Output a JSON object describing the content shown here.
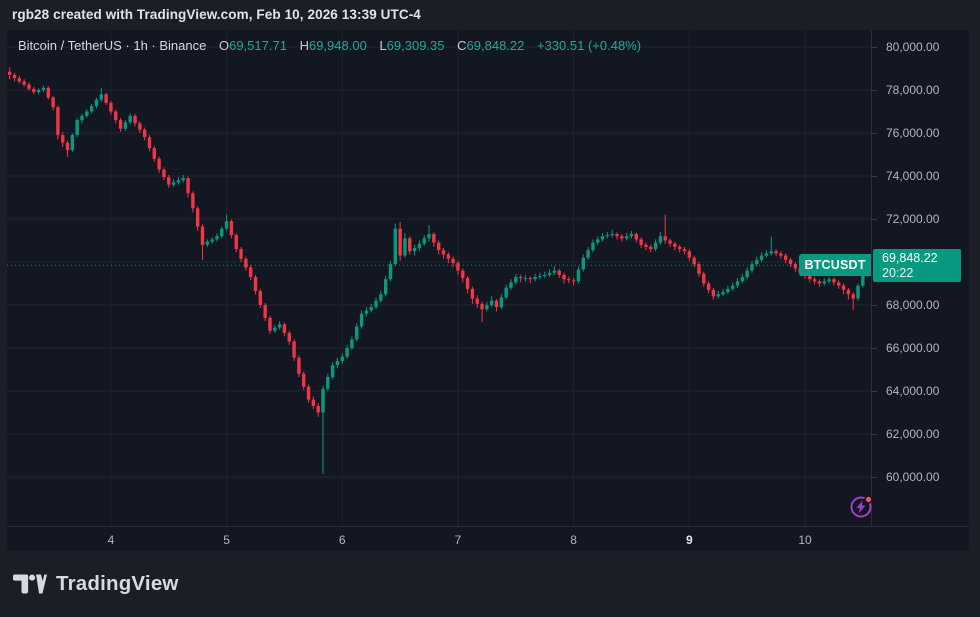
{
  "attribution": {
    "text": "rgb28 created with TradingView.com, Feb 10, 2026 13:39 UTC-4"
  },
  "legend": {
    "symbol_title": "Bitcoin / TetherUS · 1h · Binance",
    "ohlc": {
      "o_label": "O",
      "o_value": "69,517.71",
      "h_label": "H",
      "h_value": "69,948.00",
      "l_label": "L",
      "l_value": "69,309.35",
      "c_label": "C",
      "c_value": "69,848.22",
      "change": "+330.51 (+0.48%)"
    }
  },
  "price_badge": {
    "symbol_label": "BTCUSDT",
    "price": "69,848.22",
    "countdown": "20:22"
  },
  "price_scale": {
    "labels": [
      {
        "text": "80,000.00",
        "value": 80000
      },
      {
        "text": "78,000.00",
        "value": 78000
      },
      {
        "text": "76,000.00",
        "value": 76000
      },
      {
        "text": "74,000.00",
        "value": 74000
      },
      {
        "text": "72,000.00",
        "value": 72000
      },
      {
        "text": "68,000.00",
        "value": 68000
      },
      {
        "text": "66,000.00",
        "value": 66000
      },
      {
        "text": "64,000.00",
        "value": 64000
      },
      {
        "text": "62,000.00",
        "value": 62000
      },
      {
        "text": "60,000.00",
        "value": 60000
      }
    ]
  },
  "footer": {
    "logo_text": "TradingView"
  },
  "icons": {
    "flash-icon": "lightning bolt in circle with red dot",
    "tradingview-logo-icon": "TV monogram"
  },
  "colors": {
    "up": "#089981",
    "down": "#f23645",
    "page_bg": "#1b1e26",
    "widget_bg": "#131722",
    "grid": "#1f2430",
    "separator": "#2a2e39",
    "axis_text": "#b2b5be",
    "flash_purple": "#a13fc9",
    "flash_dot_red": "#f7525f"
  },
  "chart_data": {
    "type": "candlestick",
    "symbol": "BTCUSDT",
    "exchange": "Binance",
    "timeframe": "1h",
    "title": "Bitcoin / TetherUS · 1h · Binance",
    "first_bar_time": "2026-02-03 03:00",
    "last_bar_time": "2026-02-10 13:00",
    "last_price": 69848.22,
    "price_axis": {
      "max": 80000,
      "min": 60000,
      "grid_step": 2000,
      "gridline_prices": [
        60000,
        62000,
        64000,
        66000,
        68000,
        70000,
        72000,
        74000,
        76000,
        78000,
        80000
      ]
    },
    "day_ticks": [
      {
        "text": "4",
        "index": 21,
        "bold": false
      },
      {
        "text": "5",
        "index": 45,
        "bold": false
      },
      {
        "text": "6",
        "index": 69,
        "bold": false
      },
      {
        "text": "7",
        "index": 93,
        "bold": false
      },
      {
        "text": "8",
        "index": 117,
        "bold": false
      },
      {
        "text": "9",
        "index": 141,
        "bold": true
      },
      {
        "text": "10",
        "index": 165,
        "bold": false
      }
    ],
    "candles": [
      [
        78850,
        79050,
        78500,
        78700
      ],
      [
        78700,
        78800,
        78400,
        78550
      ],
      [
        78550,
        78650,
        78300,
        78400
      ],
      [
        78400,
        78500,
        78150,
        78250
      ],
      [
        78250,
        78350,
        77950,
        78050
      ],
      [
        78050,
        78150,
        77800,
        77900
      ],
      [
        77900,
        78080,
        77800,
        78000
      ],
      [
        78000,
        78200,
        77900,
        78100
      ],
      [
        78100,
        78180,
        77550,
        77650
      ],
      [
        77650,
        77720,
        77050,
        77200
      ],
      [
        77200,
        77280,
        75700,
        75900
      ],
      [
        75900,
        76050,
        75350,
        75550
      ],
      [
        75550,
        75650,
        74880,
        75200
      ],
      [
        75200,
        75980,
        75100,
        75900
      ],
      [
        75900,
        76700,
        75820,
        76600
      ],
      [
        76600,
        76900,
        76450,
        76800
      ],
      [
        76800,
        77100,
        76700,
        77000
      ],
      [
        77000,
        77350,
        76900,
        77250
      ],
      [
        77250,
        77650,
        77150,
        77550
      ],
      [
        77550,
        78100,
        77450,
        77800
      ],
      [
        77800,
        77880,
        77300,
        77400
      ],
      [
        77400,
        77500,
        76850,
        77000
      ],
      [
        77000,
        77080,
        76450,
        76600
      ],
      [
        76600,
        76700,
        76050,
        76200
      ],
      [
        76200,
        76600,
        76100,
        76500
      ],
      [
        76500,
        76900,
        76400,
        76800
      ],
      [
        76800,
        76880,
        76300,
        76450
      ],
      [
        76450,
        76550,
        76000,
        76150
      ],
      [
        76150,
        76250,
        75650,
        75800
      ],
      [
        75800,
        75900,
        75150,
        75300
      ],
      [
        75300,
        75400,
        74650,
        74800
      ],
      [
        74800,
        74900,
        74150,
        74300
      ],
      [
        74300,
        74400,
        73800,
        73950
      ],
      [
        73950,
        74050,
        73450,
        73600
      ],
      [
        73600,
        73850,
        73500,
        73700
      ],
      [
        73700,
        73950,
        73600,
        73800
      ],
      [
        73800,
        74050,
        73700,
        73900
      ],
      [
        73900,
        73980,
        73000,
        73200
      ],
      [
        73200,
        73280,
        72300,
        72500
      ],
      [
        72500,
        72600,
        71450,
        71650
      ],
      [
        71650,
        71750,
        70100,
        70800
      ],
      [
        70800,
        71050,
        70700,
        70950
      ],
      [
        70950,
        71150,
        70850,
        71050
      ],
      [
        71050,
        71350,
        70950,
        71200
      ],
      [
        71200,
        71650,
        71100,
        71550
      ],
      [
        71550,
        72200,
        71450,
        71900
      ],
      [
        71900,
        71980,
        71100,
        71250
      ],
      [
        71250,
        71350,
        70450,
        70600
      ],
      [
        70600,
        70700,
        70000,
        70150
      ],
      [
        70150,
        70250,
        69600,
        69750
      ],
      [
        69750,
        69850,
        69150,
        69300
      ],
      [
        69300,
        69400,
        68500,
        68650
      ],
      [
        68650,
        68750,
        67850,
        68000
      ],
      [
        68000,
        68100,
        67250,
        67400
      ],
      [
        67400,
        67500,
        66650,
        66800
      ],
      [
        66800,
        67050,
        66700,
        66950
      ],
      [
        66950,
        67250,
        66850,
        67100
      ],
      [
        67100,
        67180,
        66550,
        66700
      ],
      [
        66700,
        66800,
        66150,
        66300
      ],
      [
        66300,
        66400,
        65400,
        65550
      ],
      [
        65550,
        65650,
        64650,
        64800
      ],
      [
        64800,
        64900,
        64050,
        64200
      ],
      [
        64200,
        64300,
        63450,
        63600
      ],
      [
        63600,
        63750,
        63150,
        63300
      ],
      [
        63300,
        63450,
        62800,
        63000
      ],
      [
        63000,
        64250,
        60150,
        64100
      ],
      [
        64100,
        64800,
        64000,
        64650
      ],
      [
        64650,
        65350,
        64550,
        65200
      ],
      [
        65200,
        65550,
        65050,
        65400
      ],
      [
        65400,
        65750,
        65250,
        65600
      ],
      [
        65600,
        66150,
        65500,
        66000
      ],
      [
        66000,
        66550,
        65900,
        66400
      ],
      [
        66400,
        67150,
        66300,
        67000
      ],
      [
        67000,
        67750,
        66900,
        67600
      ],
      [
        67600,
        67900,
        67450,
        67750
      ],
      [
        67750,
        68050,
        67650,
        67900
      ],
      [
        67900,
        68350,
        67800,
        68200
      ],
      [
        68200,
        68650,
        68100,
        68500
      ],
      [
        68500,
        69350,
        68400,
        69200
      ],
      [
        69200,
        70050,
        69100,
        69900
      ],
      [
        69900,
        71780,
        69800,
        71550
      ],
      [
        71550,
        71860,
        70050,
        70300
      ],
      [
        70300,
        71350,
        70200,
        71100
      ],
      [
        71100,
        71200,
        70350,
        70500
      ],
      [
        70500,
        70800,
        70300,
        70650
      ],
      [
        70650,
        71000,
        70500,
        70850
      ],
      [
        70850,
        71250,
        70750,
        71100
      ],
      [
        71100,
        71720,
        70950,
        71300
      ],
      [
        71300,
        71380,
        70700,
        70900
      ],
      [
        70900,
        71000,
        70350,
        70550
      ],
      [
        70550,
        70650,
        70150,
        70350
      ],
      [
        70350,
        70450,
        69950,
        70150
      ],
      [
        70150,
        70250,
        69750,
        69950
      ],
      [
        69950,
        70050,
        69400,
        69600
      ],
      [
        69600,
        69700,
        69050,
        69250
      ],
      [
        69250,
        69350,
        68550,
        68750
      ],
      [
        68750,
        68850,
        68050,
        68300
      ],
      [
        68300,
        68450,
        67850,
        68050
      ],
      [
        68050,
        68150,
        67200,
        67800
      ],
      [
        67800,
        68150,
        67700,
        68000
      ],
      [
        68000,
        68400,
        67900,
        68200
      ],
      [
        68200,
        68280,
        67700,
        67900
      ],
      [
        67900,
        68500,
        67800,
        68350
      ],
      [
        68350,
        68950,
        68250,
        68800
      ],
      [
        68800,
        69200,
        68700,
        69050
      ],
      [
        69050,
        69450,
        68950,
        69300
      ],
      [
        69300,
        69400,
        69050,
        69250
      ],
      [
        69250,
        69400,
        69100,
        69250
      ],
      [
        69250,
        69350,
        69000,
        69200
      ],
      [
        69200,
        69450,
        69100,
        69300
      ],
      [
        69300,
        69500,
        69200,
        69350
      ],
      [
        69350,
        69550,
        69250,
        69400
      ],
      [
        69400,
        69650,
        69300,
        69500
      ],
      [
        69500,
        69800,
        69400,
        69600
      ],
      [
        69600,
        69680,
        69250,
        69400
      ],
      [
        69400,
        69500,
        69000,
        69200
      ],
      [
        69200,
        69320,
        69020,
        69150
      ],
      [
        69150,
        69250,
        68900,
        69100
      ],
      [
        69100,
        69800,
        69000,
        69650
      ],
      [
        69650,
        70350,
        69550,
        70200
      ],
      [
        70200,
        70700,
        70100,
        70550
      ],
      [
        70550,
        71050,
        70450,
        70900
      ],
      [
        70900,
        71200,
        70800,
        71050
      ],
      [
        71050,
        71350,
        70950,
        71200
      ],
      [
        71200,
        71400,
        71100,
        71250
      ],
      [
        71250,
        71500,
        71150,
        71300
      ],
      [
        71300,
        71380,
        71050,
        71200
      ],
      [
        71200,
        71300,
        70950,
        71100
      ],
      [
        71100,
        71350,
        71000,
        71200
      ],
      [
        71200,
        71450,
        71100,
        71300
      ],
      [
        71300,
        71380,
        70900,
        71050
      ],
      [
        71050,
        71150,
        70650,
        70800
      ],
      [
        70800,
        70900,
        70550,
        70700
      ],
      [
        70700,
        70800,
        70450,
        70600
      ],
      [
        70600,
        71050,
        70500,
        70900
      ],
      [
        70900,
        71400,
        70800,
        71200
      ],
      [
        71200,
        72200,
        70850,
        71000
      ],
      [
        71000,
        71100,
        70700,
        70850
      ],
      [
        70850,
        70950,
        70550,
        70700
      ],
      [
        70700,
        70800,
        70450,
        70600
      ],
      [
        70600,
        70700,
        70350,
        70500
      ],
      [
        70500,
        70600,
        70050,
        70200
      ],
      [
        70200,
        70300,
        69750,
        69900
      ],
      [
        69900,
        70000,
        69300,
        69450
      ],
      [
        69450,
        69550,
        68850,
        69000
      ],
      [
        69000,
        69100,
        68550,
        68700
      ],
      [
        68700,
        68800,
        68250,
        68400
      ],
      [
        68400,
        68650,
        68300,
        68500
      ],
      [
        68500,
        68750,
        68400,
        68600
      ],
      [
        68600,
        68900,
        68500,
        68750
      ],
      [
        68750,
        69050,
        68650,
        68900
      ],
      [
        68900,
        69250,
        68800,
        69100
      ],
      [
        69100,
        69450,
        69000,
        69300
      ],
      [
        69300,
        69750,
        69200,
        69600
      ],
      [
        69600,
        70050,
        69500,
        69900
      ],
      [
        69900,
        70250,
        69800,
        70100
      ],
      [
        70100,
        70450,
        70000,
        70300
      ],
      [
        70300,
        70550,
        70200,
        70400
      ],
      [
        70400,
        71180,
        70300,
        70500
      ],
      [
        70500,
        70600,
        70250,
        70400
      ],
      [
        70400,
        70500,
        70150,
        70300
      ],
      [
        70300,
        70400,
        69950,
        70100
      ],
      [
        70100,
        70200,
        69750,
        69900
      ],
      [
        69900,
        70000,
        69550,
        69700
      ],
      [
        69700,
        69800,
        69350,
        69500
      ],
      [
        69500,
        69620,
        69220,
        69350
      ],
      [
        69350,
        69450,
        69050,
        69200
      ],
      [
        69200,
        69320,
        68950,
        69100
      ],
      [
        69100,
        69200,
        68850,
        69000
      ],
      [
        69000,
        69250,
        68900,
        69100
      ],
      [
        69100,
        69300,
        69000,
        69200
      ],
      [
        69200,
        69280,
        68900,
        69050
      ],
      [
        69050,
        69150,
        68750,
        68900
      ],
      [
        68900,
        69000,
        68500,
        68700
      ],
      [
        68700,
        68800,
        68250,
        68500
      ],
      [
        68500,
        68600,
        67770,
        68300
      ],
      [
        68300,
        69000,
        68200,
        68900
      ],
      [
        68900,
        69600,
        68800,
        69517.71
      ],
      [
        69517.71,
        69948.0,
        69309.35,
        69848.22
      ]
    ]
  }
}
